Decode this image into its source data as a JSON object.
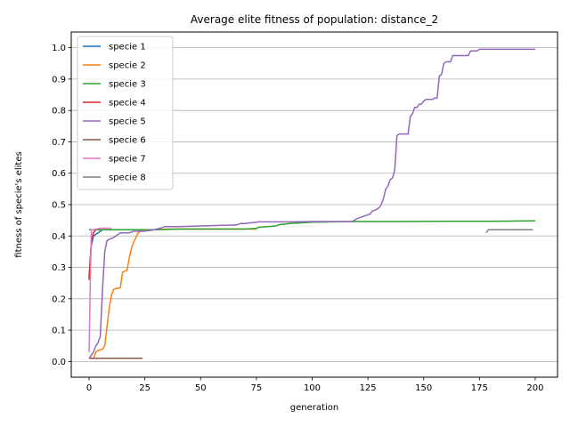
{
  "chart_data": {
    "type": "line",
    "title": "Average elite fitness of population: distance_2",
    "xlabel": "generation",
    "ylabel": "fitness of specie's elites",
    "xlim": [
      -8,
      210
    ],
    "ylim": [
      -0.05,
      1.05
    ],
    "xticks": [
      0,
      25,
      50,
      75,
      100,
      125,
      150,
      175,
      200
    ],
    "yticks": [
      0.0,
      0.1,
      0.2,
      0.3,
      0.4,
      0.5,
      0.6,
      0.7,
      0.8,
      0.9,
      1.0
    ],
    "grid": "horizontal",
    "legend_position": "top-left",
    "series": [
      {
        "name": "specie 1",
        "color": "#1f77b4",
        "x": [
          0,
          1,
          2,
          4,
          6,
          8
        ],
        "y": [
          0.27,
          0.37,
          0.4,
          0.41,
          0.42,
          0.42
        ]
      },
      {
        "name": "specie 2",
        "color": "#ff7f0e",
        "x": [
          0,
          2,
          3,
          4,
          6,
          7,
          8,
          9,
          10,
          11,
          12,
          14,
          15,
          17,
          18,
          19,
          20,
          22,
          24,
          30,
          35,
          45,
          60,
          75
        ],
        "y": [
          0.01,
          0.01,
          0.03,
          0.035,
          0.04,
          0.05,
          0.11,
          0.17,
          0.21,
          0.23,
          0.232,
          0.235,
          0.285,
          0.29,
          0.33,
          0.36,
          0.38,
          0.41,
          0.42,
          0.42,
          0.422,
          0.422,
          0.422,
          0.422
        ]
      },
      {
        "name": "specie 3",
        "color": "#2ca02c",
        "x": [
          0,
          10,
          20,
          30,
          40,
          50,
          60,
          70,
          75,
          76,
          80,
          84,
          85,
          90,
          100,
          110,
          120,
          140,
          160,
          180,
          200
        ],
        "y": [
          0.42,
          0.42,
          0.42,
          0.42,
          0.422,
          0.422,
          0.422,
          0.422,
          0.424,
          0.428,
          0.43,
          0.432,
          0.436,
          0.44,
          0.444,
          0.445,
          0.446,
          0.446,
          0.447,
          0.447,
          0.448
        ]
      },
      {
        "name": "specie 4",
        "color": "#d62728",
        "x": [
          0,
          1,
          2,
          3
        ],
        "y": [
          0.26,
          0.38,
          0.41,
          0.42
        ]
      },
      {
        "name": "specie 5",
        "color": "#9467bd",
        "x": [
          0,
          1,
          2,
          3,
          4,
          5,
          6,
          7,
          8,
          9,
          10,
          11,
          12,
          13,
          14,
          16,
          18,
          20,
          24,
          28,
          32,
          34,
          40,
          50,
          60,
          66,
          68,
          70,
          72,
          74,
          76,
          80,
          90,
          100,
          110,
          118,
          120,
          122,
          124,
          125,
          126,
          127,
          128,
          129,
          130,
          131,
          132,
          133,
          134,
          135,
          136,
          137,
          138,
          139,
          140,
          141,
          142,
          143,
          144,
          145,
          146,
          147,
          148,
          149,
          150,
          151,
          152,
          153,
          154,
          155,
          156,
          157,
          158,
          159,
          160,
          161,
          162,
          163,
          164,
          165,
          166,
          167,
          168,
          169,
          170,
          171,
          172,
          173,
          174,
          175,
          180,
          190,
          200
        ],
        "y": [
          0.01,
          0.02,
          0.03,
          0.05,
          0.06,
          0.08,
          0.23,
          0.35,
          0.385,
          0.39,
          0.392,
          0.395,
          0.4,
          0.405,
          0.41,
          0.41,
          0.41,
          0.415,
          0.415,
          0.418,
          0.425,
          0.43,
          0.43,
          0.432,
          0.434,
          0.435,
          0.44,
          0.44,
          0.442,
          0.443,
          0.445,
          0.445,
          0.445,
          0.446,
          0.446,
          0.446,
          0.455,
          0.46,
          0.465,
          0.468,
          0.47,
          0.48,
          0.482,
          0.485,
          0.49,
          0.5,
          0.52,
          0.55,
          0.56,
          0.58,
          0.585,
          0.61,
          0.72,
          0.725,
          0.725,
          0.725,
          0.725,
          0.725,
          0.78,
          0.79,
          0.81,
          0.81,
          0.82,
          0.82,
          0.83,
          0.835,
          0.835,
          0.835,
          0.835,
          0.84,
          0.84,
          0.91,
          0.915,
          0.95,
          0.955,
          0.955,
          0.955,
          0.975,
          0.975,
          0.975,
          0.975,
          0.975,
          0.975,
          0.975,
          0.975,
          0.99,
          0.99,
          0.99,
          0.99,
          0.995,
          0.995,
          0.995,
          0.995
        ]
      },
      {
        "name": "specie 6",
        "color": "#8c564b",
        "x": [
          0,
          5,
          10,
          15,
          20,
          24
        ],
        "y": [
          0.01,
          0.01,
          0.01,
          0.01,
          0.01,
          0.01
        ]
      },
      {
        "name": "specie 7",
        "color": "#e377c2",
        "x": [
          0,
          1,
          2,
          5,
          10
        ],
        "y": [
          0.03,
          0.42,
          0.42,
          0.425,
          0.425
        ]
      },
      {
        "name": "specie 8",
        "color": "#7f7f7f",
        "x": [
          178,
          179,
          180,
          190,
          199
        ],
        "y": [
          0.41,
          0.42,
          0.42,
          0.42,
          0.42
        ]
      }
    ]
  }
}
